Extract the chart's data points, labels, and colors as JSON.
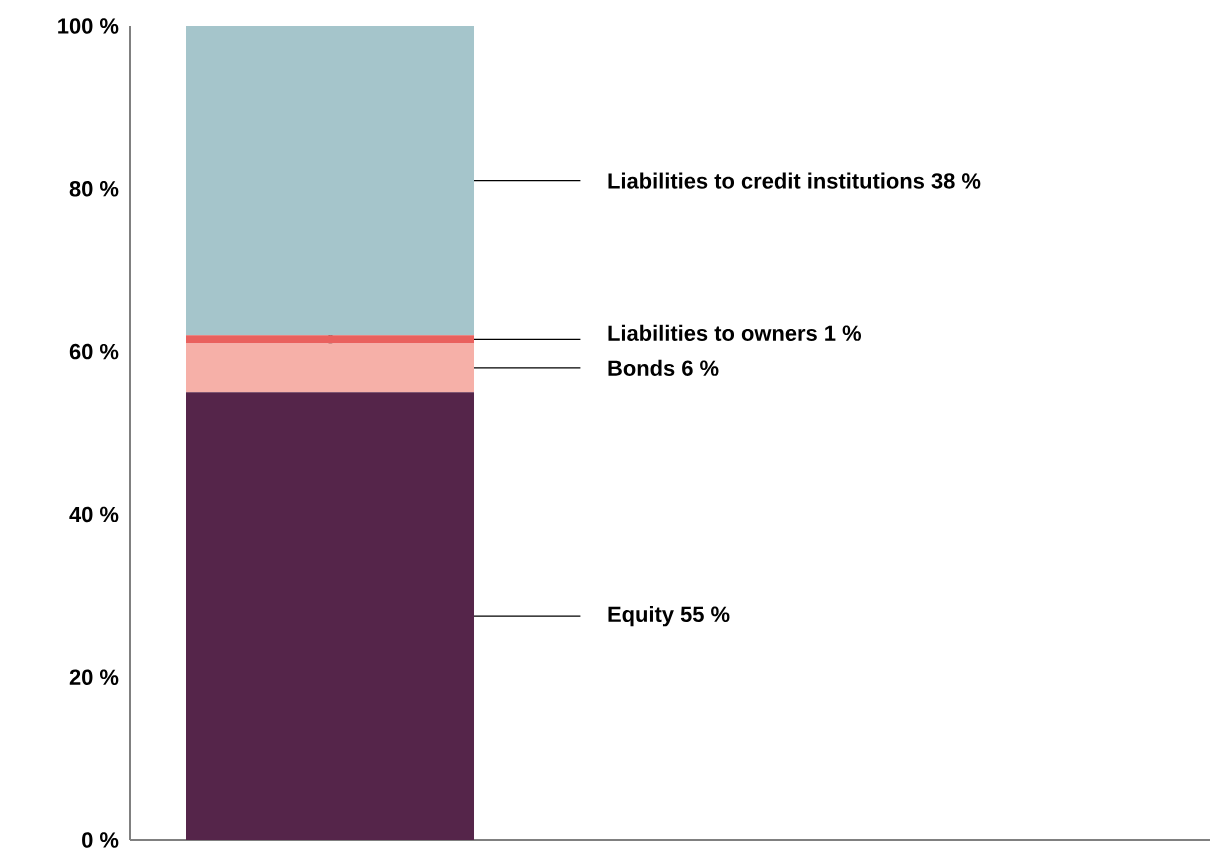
{
  "chart_data": {
    "type": "bar",
    "stacked": true,
    "categories": [
      null
    ],
    "series": [
      {
        "name": "Equity 55 %",
        "color": "#55254a",
        "values": [
          55
        ]
      },
      {
        "name": "Bonds 6 %",
        "color": "#f6b0a8",
        "values": [
          6
        ]
      },
      {
        "name": "Liabilities to owners 1 %",
        "color": "#e9615e",
        "values": [
          1
        ]
      },
      {
        "name": "Liabilities to credit institutions 38 %",
        "color": "#a5c5cb",
        "values": [
          38
        ]
      }
    ],
    "ylim": [
      0,
      100
    ],
    "yticks": [
      {
        "value": 0,
        "label": "0 %"
      },
      {
        "value": 20,
        "label": "20 %"
      },
      {
        "value": 40,
        "label": "40 %"
      },
      {
        "value": 60,
        "label": "60 %"
      },
      {
        "value": 80,
        "label": "80 %"
      },
      {
        "value": 100,
        "label": "100 %"
      }
    ],
    "grid": false
  }
}
